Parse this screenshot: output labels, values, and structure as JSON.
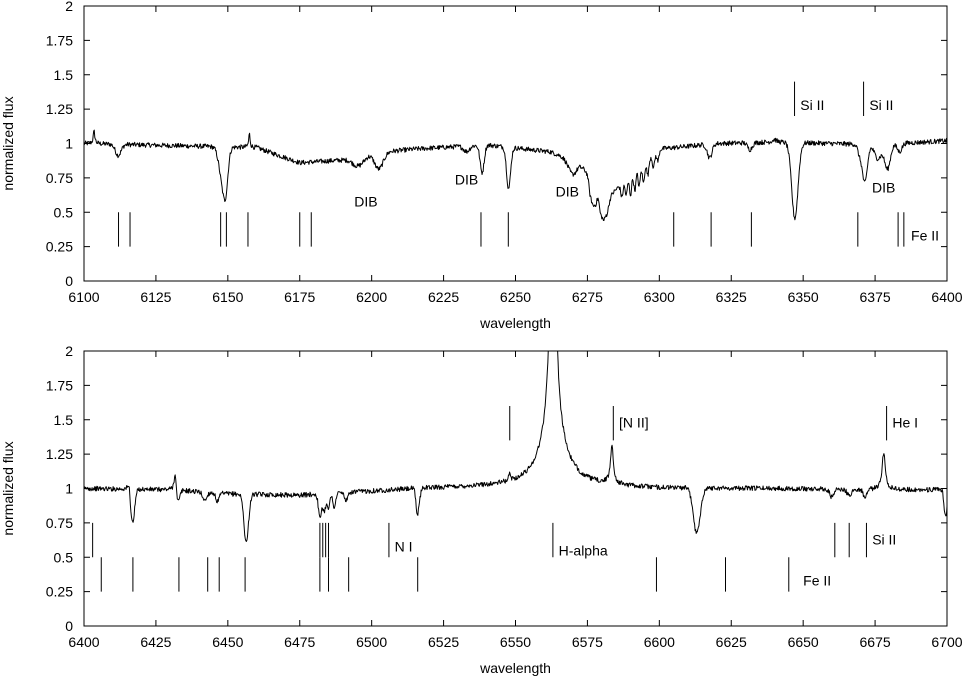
{
  "chart_data": [
    {
      "type": "line",
      "xlabel": "wavelength",
      "ylabel": "normalized flux",
      "xlim": [
        6100,
        6400
      ],
      "ylim": [
        0,
        2
      ],
      "xticks": [
        6100,
        6125,
        6150,
        6175,
        6200,
        6225,
        6250,
        6275,
        6300,
        6325,
        6350,
        6375,
        6400
      ],
      "yticks": [
        "0",
        "0.25",
        "0.5",
        "0.75",
        "1",
        "1.25",
        "1.5",
        "1.75",
        "2"
      ],
      "continuum": [
        [
          6100,
          1.0
        ],
        [
          6160,
          0.97
        ],
        [
          6175,
          0.86
        ],
        [
          6190,
          0.88
        ],
        [
          6200,
          0.93
        ],
        [
          6215,
          0.96
        ],
        [
          6240,
          0.99
        ],
        [
          6262,
          0.94
        ],
        [
          6272,
          0.86
        ],
        [
          6282,
          0.6
        ],
        [
          6292,
          0.82
        ],
        [
          6300,
          0.96
        ],
        [
          6320,
          1.0
        ],
        [
          6340,
          1.01
        ],
        [
          6360,
          1.0
        ],
        [
          6375,
          0.99
        ],
        [
          6400,
          1.02
        ]
      ],
      "absorption": [
        [
          6111.9,
          0.08,
          1.0
        ],
        [
          6148.2,
          0.25,
          1.2
        ],
        [
          6149.3,
          0.2,
          0.8
        ],
        [
          6195.4,
          0.07,
          2.0
        ],
        [
          6202.5,
          0.12,
          1.5
        ],
        [
          6233,
          0.04,
          1.0
        ],
        [
          6238.4,
          0.2,
          0.7
        ],
        [
          6247.6,
          0.3,
          0.7
        ],
        [
          6269.8,
          0.1,
          1.5
        ],
        [
          6276,
          0.12,
          0.5
        ],
        [
          6277,
          0.15,
          0.5
        ],
        [
          6278,
          0.12,
          0.5
        ],
        [
          6279.5,
          0.15,
          0.5
        ],
        [
          6280.5,
          0.12,
          0.5
        ],
        [
          6281.5,
          0.12,
          0.8
        ],
        [
          6287,
          0.1,
          0.4
        ],
        [
          6288.5,
          0.12,
          0.4
        ],
        [
          6290,
          0.15,
          0.4
        ],
        [
          6291.5,
          0.15,
          0.4
        ],
        [
          6293,
          0.15,
          0.4
        ],
        [
          6294.5,
          0.15,
          0.4
        ],
        [
          6296,
          0.12,
          0.4
        ],
        [
          6298,
          0.1,
          0.4
        ],
        [
          6299.5,
          0.08,
          0.4
        ],
        [
          6317.5,
          0.1,
          0.8
        ],
        [
          6331.5,
          0.05,
          0.8
        ],
        [
          6347.1,
          0.55,
          1.1
        ],
        [
          6369.5,
          0.06,
          0.6
        ],
        [
          6371.4,
          0.28,
          0.9
        ],
        [
          6376,
          0.1,
          1.2
        ],
        [
          6379.3,
          0.18,
          1.0
        ],
        [
          6383.5,
          0.06,
          0.8
        ]
      ],
      "emission": [
        [
          6103.5,
          0.09,
          0.35
        ],
        [
          6157.5,
          0.1,
          0.3
        ],
        [
          6340,
          0.02,
          0.8
        ]
      ],
      "markers": [
        {
          "x": 6112,
          "y0": 0.25,
          "y1": 0.5
        },
        {
          "x": 6116,
          "y0": 0.25,
          "y1": 0.5
        },
        {
          "x": 6147.5,
          "y0": 0.25,
          "y1": 0.5
        },
        {
          "x": 6149.5,
          "y0": 0.25,
          "y1": 0.5
        },
        {
          "x": 6157,
          "y0": 0.25,
          "y1": 0.5
        },
        {
          "x": 6175,
          "y0": 0.25,
          "y1": 0.5
        },
        {
          "x": 6179,
          "y0": 0.25,
          "y1": 0.5
        },
        {
          "x": 6238,
          "y0": 0.25,
          "y1": 0.5
        },
        {
          "x": 6247.5,
          "y0": 0.25,
          "y1": 0.5
        },
        {
          "x": 6305,
          "y0": 0.25,
          "y1": 0.5
        },
        {
          "x": 6318,
          "y0": 0.25,
          "y1": 0.5
        },
        {
          "x": 6332,
          "y0": 0.25,
          "y1": 0.5
        },
        {
          "x": 6369,
          "y0": 0.25,
          "y1": 0.5
        },
        {
          "x": 6383,
          "y0": 0.25,
          "y1": 0.5
        },
        {
          "x": 6385,
          "y0": 0.25,
          "y1": 0.5
        },
        {
          "x": 6347,
          "y0": 1.2,
          "y1": 1.45
        },
        {
          "x": 6371,
          "y0": 1.2,
          "y1": 1.45
        }
      ],
      "annotations": [
        {
          "text": "DIB",
          "x": 6198,
          "y": 0.58,
          "anchor": "middle"
        },
        {
          "text": "DIB",
          "x": 6233,
          "y": 0.74,
          "anchor": "middle"
        },
        {
          "text": "DIB",
          "x": 6268,
          "y": 0.65,
          "anchor": "middle"
        },
        {
          "text": "DIB",
          "x": 6378,
          "y": 0.68,
          "anchor": "middle"
        },
        {
          "text": "Si II",
          "x": 6349,
          "y": 1.28,
          "anchor": "start"
        },
        {
          "text": "Si II",
          "x": 6373,
          "y": 1.28,
          "anchor": "start"
        },
        {
          "text": "Fe II",
          "x": 6387.5,
          "y": 0.33,
          "anchor": "start"
        }
      ]
    },
    {
      "type": "line",
      "xlabel": "wavelength",
      "ylabel": "normalized flux",
      "xlim": [
        6400,
        6700
      ],
      "ylim": [
        0,
        2
      ],
      "xticks": [
        6400,
        6425,
        6450,
        6475,
        6500,
        6525,
        6550,
        6575,
        6600,
        6625,
        6650,
        6675,
        6700
      ],
      "yticks": [
        "0",
        "0.25",
        "0.5",
        "0.75",
        "1",
        "1.25",
        "1.5",
        "1.75",
        "2"
      ],
      "continuum": [
        [
          6400,
          1.0
        ],
        [
          6430,
          0.99
        ],
        [
          6450,
          0.96
        ],
        [
          6475,
          0.95
        ],
        [
          6500,
          0.98
        ],
        [
          6520,
          1.0
        ],
        [
          6540,
          1.01
        ],
        [
          6585,
          1.01
        ],
        [
          6600,
          1.0
        ],
        [
          6640,
          1.0
        ],
        [
          6670,
          0.99
        ],
        [
          6700,
          0.99
        ]
      ],
      "absorption": [
        [
          6416.9,
          0.25,
          0.7
        ],
        [
          6432.7,
          0.1,
          0.6
        ],
        [
          6442,
          0.06,
          0.7
        ],
        [
          6446.4,
          0.06,
          0.6
        ],
        [
          6456.4,
          0.35,
          0.8
        ],
        [
          6482,
          0.18,
          0.5
        ],
        [
          6483.5,
          0.13,
          0.5
        ],
        [
          6485,
          0.1,
          0.5
        ],
        [
          6487,
          0.1,
          0.5
        ],
        [
          6491.2,
          0.06,
          0.6
        ],
        [
          6516.1,
          0.25,
          0.6
        ],
        [
          6613,
          0.33,
          1.2
        ],
        [
          6660,
          0.06,
          0.7
        ],
        [
          6666,
          0.04,
          0.8
        ],
        [
          6671.5,
          0.06,
          0.6
        ],
        [
          6699.5,
          0.2,
          0.5
        ]
      ],
      "emission": [
        [
          6563,
          2.0,
          1.1
        ],
        [
          6563,
          0.4,
          5.0
        ],
        [
          6583.5,
          0.28,
          0.6
        ],
        [
          6678,
          0.27,
          0.7
        ],
        [
          6415.7,
          0.07,
          0.4
        ],
        [
          6431.7,
          0.15,
          0.4
        ],
        [
          6516.4,
          0.1,
          0.4
        ],
        [
          6548,
          0.05,
          0.4
        ]
      ],
      "markers": [
        {
          "x": 6403,
          "y0": 0.5,
          "y1": 0.75
        },
        {
          "x": 6406,
          "y0": 0.25,
          "y1": 0.5
        },
        {
          "x": 6417,
          "y0": 0.25,
          "y1": 0.5
        },
        {
          "x": 6433,
          "y0": 0.25,
          "y1": 0.5
        },
        {
          "x": 6443,
          "y0": 0.25,
          "y1": 0.5
        },
        {
          "x": 6447,
          "y0": 0.25,
          "y1": 0.5
        },
        {
          "x": 6456,
          "y0": 0.25,
          "y1": 0.5
        },
        {
          "x": 6482,
          "y0": 0.5,
          "y1": 0.75
        },
        {
          "x": 6483,
          "y0": 0.5,
          "y1": 0.75
        },
        {
          "x": 6484,
          "y0": 0.5,
          "y1": 0.75
        },
        {
          "x": 6485,
          "y0": 0.5,
          "y1": 0.75
        },
        {
          "x": 6482,
          "y0": 0.25,
          "y1": 0.5
        },
        {
          "x": 6485,
          "y0": 0.25,
          "y1": 0.5
        },
        {
          "x": 6492,
          "y0": 0.25,
          "y1": 0.5
        },
        {
          "x": 6516,
          "y0": 0.25,
          "y1": 0.5
        },
        {
          "x": 6506,
          "y0": 0.5,
          "y1": 0.75
        },
        {
          "x": 6563,
          "y0": 0.5,
          "y1": 0.75
        },
        {
          "x": 6599,
          "y0": 0.25,
          "y1": 0.5
        },
        {
          "x": 6623,
          "y0": 0.25,
          "y1": 0.5
        },
        {
          "x": 6645,
          "y0": 0.25,
          "y1": 0.5
        },
        {
          "x": 6661,
          "y0": 0.5,
          "y1": 0.75
        },
        {
          "x": 6666,
          "y0": 0.5,
          "y1": 0.75
        },
        {
          "x": 6672,
          "y0": 0.5,
          "y1": 0.75
        },
        {
          "x": 6548,
          "y0": 1.35,
          "y1": 1.6
        },
        {
          "x": 6584,
          "y0": 1.35,
          "y1": 1.6
        },
        {
          "x": 6679,
          "y0": 1.35,
          "y1": 1.6
        }
      ],
      "annotations": [
        {
          "text": "N I",
          "x": 6508,
          "y": 0.58,
          "anchor": "start"
        },
        {
          "text": "H-alpha",
          "x": 6565,
          "y": 0.55,
          "anchor": "start"
        },
        {
          "text": "[N II]",
          "x": 6586,
          "y": 1.48,
          "anchor": "start"
        },
        {
          "text": "He I",
          "x": 6681,
          "y": 1.48,
          "anchor": "start"
        },
        {
          "text": "Si II",
          "x": 6674,
          "y": 0.63,
          "anchor": "start"
        },
        {
          "text": "Fe II",
          "x": 6650,
          "y": 0.33,
          "anchor": "start"
        }
      ]
    }
  ]
}
